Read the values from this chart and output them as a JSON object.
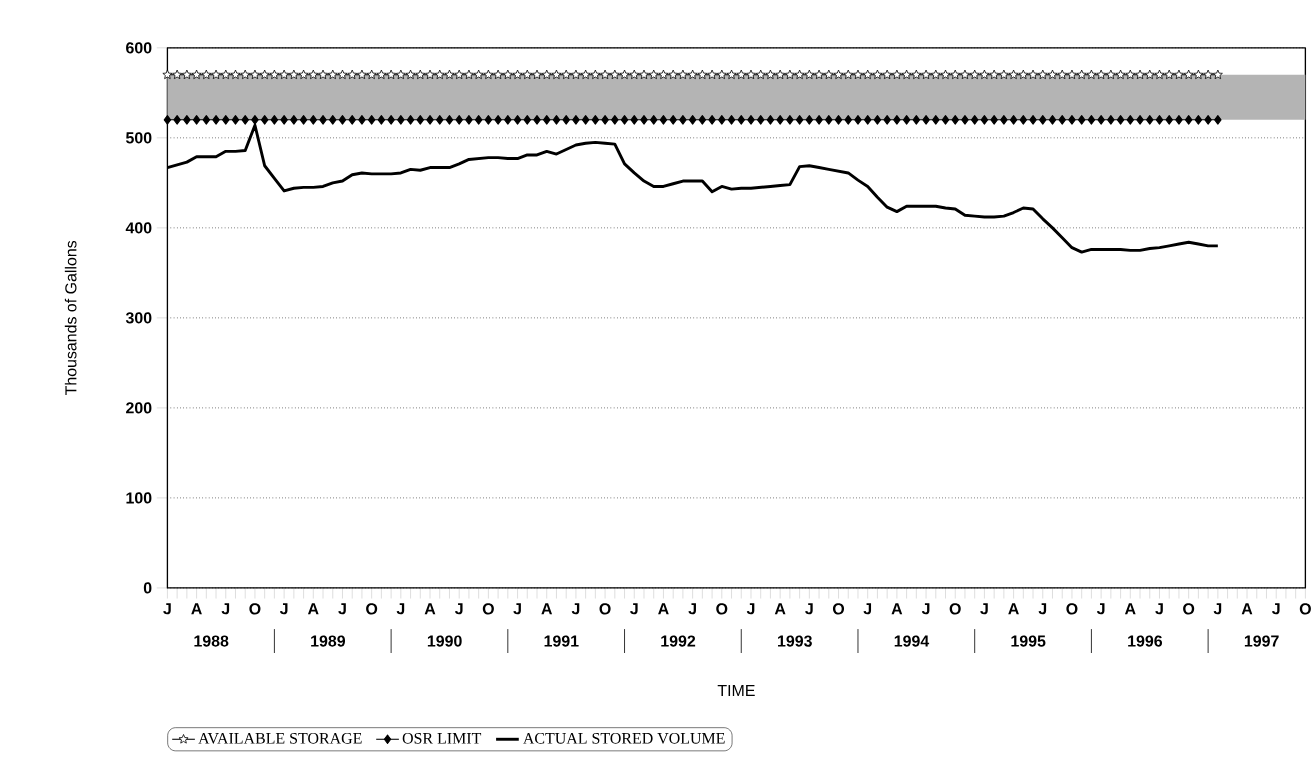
{
  "chart_data": {
    "type": "line",
    "xlabel": "TIME",
    "ylabel": "Thousands of Gallons",
    "categories": [
      "J",
      null,
      null,
      "A",
      null,
      null,
      "J",
      null,
      null,
      "O",
      null,
      null,
      "J",
      null,
      null,
      "A",
      null,
      null,
      "J",
      null,
      null,
      "O",
      null,
      null,
      "J",
      null,
      null,
      "A",
      null,
      null,
      "J",
      null,
      null,
      "O",
      null,
      null,
      "J",
      null,
      null,
      "A",
      null,
      null,
      "J",
      null,
      null,
      "O",
      null,
      null,
      "J",
      null,
      null,
      "A",
      null,
      null,
      "J",
      null,
      null,
      "O",
      null,
      null,
      "J",
      null,
      null,
      "A",
      null,
      null,
      "J",
      null,
      null,
      "O",
      null,
      null,
      "J",
      null,
      null,
      "A",
      null,
      null,
      "J",
      null,
      null,
      "O",
      null,
      null,
      "J",
      null,
      null,
      "A",
      null,
      null,
      "J",
      null,
      null,
      "O",
      null,
      null,
      "J",
      null,
      null,
      "A",
      null,
      null,
      "J",
      null,
      null,
      "O",
      null,
      null,
      "J",
      null,
      null,
      "A",
      null,
      null,
      "J",
      null,
      null,
      "O"
    ],
    "ylim": [
      0,
      600
    ],
    "yticks": [
      0,
      100,
      200,
      300,
      400,
      500,
      600
    ],
    "grid": "y",
    "legend": "bottom",
    "annotations": [
      "1988",
      "1989",
      "1990",
      "1991",
      "1992",
      "1993",
      "1994",
      "1995",
      "1996",
      "1997"
    ],
    "bands": [
      {
        "axis": "y",
        "from": 520,
        "to": 570,
        "color": "#b4b4b4"
      }
    ],
    "series": [
      {
        "name": "AVAILABLE STORAGE",
        "color": "#000000",
        "marker": "star",
        "values": [
          570,
          570,
          570,
          570,
          570,
          570,
          570,
          570,
          570,
          570,
          570,
          570,
          570,
          570,
          570,
          570,
          570,
          570,
          570,
          570,
          570,
          570,
          570,
          570,
          570,
          570,
          570,
          570,
          570,
          570,
          570,
          570,
          570,
          570,
          570,
          570,
          570,
          570,
          570,
          570,
          570,
          570,
          570,
          570,
          570,
          570,
          570,
          570,
          570,
          570,
          570,
          570,
          570,
          570,
          570,
          570,
          570,
          570,
          570,
          570,
          570,
          570,
          570,
          570,
          570,
          570,
          570,
          570,
          570,
          570,
          570,
          570,
          570,
          570,
          570,
          570,
          570,
          570,
          570,
          570,
          570,
          570,
          570,
          570,
          570,
          570,
          570,
          570,
          570,
          570,
          570,
          570,
          570,
          570,
          570,
          570,
          570,
          570,
          570,
          570,
          570,
          570,
          570,
          570,
          570,
          570,
          570,
          570,
          570,
          null,
          null,
          null,
          null,
          null,
          null,
          null,
          null,
          null
        ]
      },
      {
        "name": "OSR LIMIT",
        "color": "#000000",
        "marker": "diamond",
        "values": [
          520,
          520,
          520,
          520,
          520,
          520,
          520,
          520,
          520,
          520,
          520,
          520,
          520,
          520,
          520,
          520,
          520,
          520,
          520,
          520,
          520,
          520,
          520,
          520,
          520,
          520,
          520,
          520,
          520,
          520,
          520,
          520,
          520,
          520,
          520,
          520,
          520,
          520,
          520,
          520,
          520,
          520,
          520,
          520,
          520,
          520,
          520,
          520,
          520,
          520,
          520,
          520,
          520,
          520,
          520,
          520,
          520,
          520,
          520,
          520,
          520,
          520,
          520,
          520,
          520,
          520,
          520,
          520,
          520,
          520,
          520,
          520,
          520,
          520,
          520,
          520,
          520,
          520,
          520,
          520,
          520,
          520,
          520,
          520,
          520,
          520,
          520,
          520,
          520,
          520,
          520,
          520,
          520,
          520,
          520,
          520,
          520,
          520,
          520,
          520,
          520,
          520,
          520,
          520,
          520,
          520,
          520,
          520,
          520,
          null,
          null,
          null,
          null,
          null,
          null,
          null,
          null,
          null
        ]
      },
      {
        "name": "ACTUAL STORED VOLUME",
        "color": "#000000",
        "marker": "none",
        "values": [
          467,
          470,
          473,
          479,
          479,
          479,
          485,
          485,
          486,
          514,
          469,
          455,
          441,
          444,
          445,
          445,
          446,
          450,
          452,
          459,
          461,
          460,
          460,
          460,
          461,
          465,
          464,
          467,
          467,
          467,
          471,
          476,
          477,
          478,
          478,
          477,
          477,
          481,
          481,
          485,
          482,
          487,
          492,
          494,
          495,
          494,
          493,
          471,
          461,
          452,
          446,
          446,
          449,
          452,
          452,
          452,
          440,
          446,
          443,
          444,
          444,
          445,
          446,
          447,
          448,
          468,
          469,
          467,
          465,
          463,
          461,
          453,
          446,
          434,
          423,
          418,
          424,
          424,
          424,
          424,
          422,
          421,
          414,
          413,
          412,
          412,
          413,
          417,
          422,
          421,
          410,
          400,
          389,
          378,
          373,
          376,
          376,
          376,
          376,
          375,
          375,
          377,
          378,
          380,
          382,
          384,
          382,
          380,
          380,
          null,
          null,
          null,
          null,
          null,
          null,
          null,
          null,
          null
        ]
      }
    ]
  }
}
